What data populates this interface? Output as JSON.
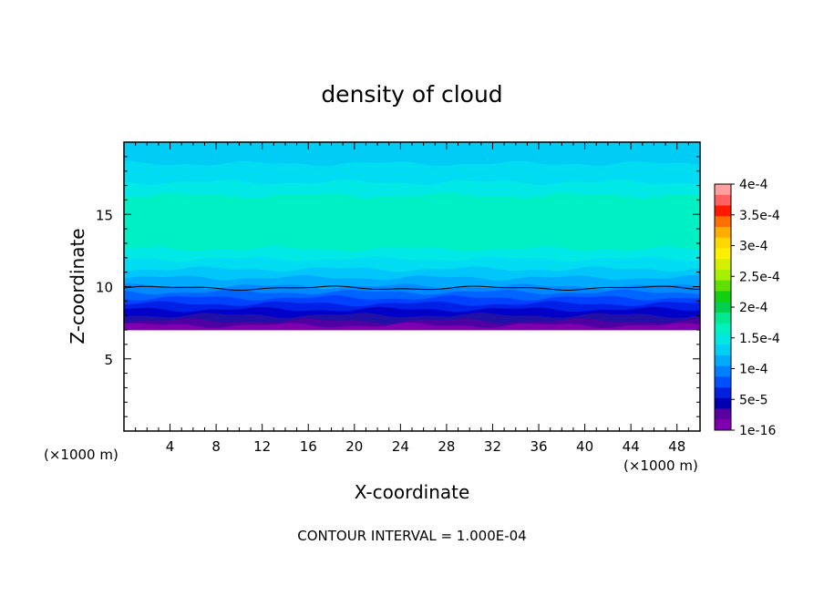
{
  "chart_data": {
    "type": "heatmap",
    "title": "density of cloud",
    "xlabel": "X-coordinate",
    "ylabel": "Z-coordinate",
    "x_unit_left": "(×1000 m)",
    "x_unit_right": "(×1000 m)",
    "xlim": [
      0,
      50
    ],
    "ylim": [
      0,
      20
    ],
    "x_ticks": [
      "4",
      "8",
      "12",
      "16",
      "20",
      "24",
      "28",
      "32",
      "36",
      "40",
      "44",
      "48"
    ],
    "y_ticks": [
      "5",
      "10",
      "15"
    ],
    "footer": "CONTOUR INTERVAL = 1.000E-04",
    "cloud_base_z": 7,
    "contour_line_z": 9.9,
    "colorbar": {
      "labels": [
        "4e-4",
        "3.5e-4",
        "3e-4",
        "2.5e-4",
        "2e-4",
        "1.5e-4",
        "1e-4",
        "5e-5",
        "1e-16"
      ],
      "label_values": [
        0.0004,
        0.00035,
        0.0003,
        0.00025,
        0.0002,
        0.00015,
        0.0001,
        5e-05,
        1e-16
      ],
      "colors": [
        "#ff9f9f",
        "#ff6060",
        "#ff1a00",
        "#ff7000",
        "#ffae00",
        "#ffd800",
        "#fff000",
        "#d4f000",
        "#a8f000",
        "#60e000",
        "#10d010",
        "#00d050",
        "#00e890",
        "#00f0c0",
        "#00e8e0",
        "#00d0f4",
        "#00aaff",
        "#0080ff",
        "#0050ff",
        "#0020e0",
        "#0000b0",
        "#5a00a0",
        "#8000b0"
      ]
    },
    "bands": [
      {
        "z_top": 20,
        "z_bottom": 18.5,
        "color": "#00ccf6"
      },
      {
        "z_top": 18.5,
        "z_bottom": 17.2,
        "color": "#00ddf2"
      },
      {
        "z_top": 17.2,
        "z_bottom": 16.3,
        "color": "#00e9e6"
      },
      {
        "z_top": 16.3,
        "z_bottom": 12.6,
        "color": "#00f0c6"
      },
      {
        "z_top": 12.6,
        "z_bottom": 11.9,
        "color": "#00e9e6"
      },
      {
        "z_top": 11.9,
        "z_bottom": 11.2,
        "color": "#00ddf2"
      },
      {
        "z_top": 11.2,
        "z_bottom": 10.6,
        "color": "#00c6fa"
      },
      {
        "z_top": 10.6,
        "z_bottom": 10.0,
        "color": "#00aaff"
      },
      {
        "z_top": 10.0,
        "z_bottom": 9.6,
        "color": "#0088ff"
      },
      {
        "z_top": 9.6,
        "z_bottom": 9.2,
        "color": "#0064ff"
      },
      {
        "z_top": 9.2,
        "z_bottom": 8.8,
        "color": "#0040ff"
      },
      {
        "z_top": 8.8,
        "z_bottom": 8.4,
        "color": "#0020e6"
      },
      {
        "z_top": 8.4,
        "z_bottom": 8.0,
        "color": "#0000c8"
      },
      {
        "z_top": 8.0,
        "z_bottom": 7.6,
        "color": "#2010a8"
      },
      {
        "z_top": 7.6,
        "z_bottom": 7.3,
        "color": "#5000a0"
      },
      {
        "z_top": 7.3,
        "z_bottom": 7.0,
        "color": "#8000b0"
      }
    ]
  }
}
